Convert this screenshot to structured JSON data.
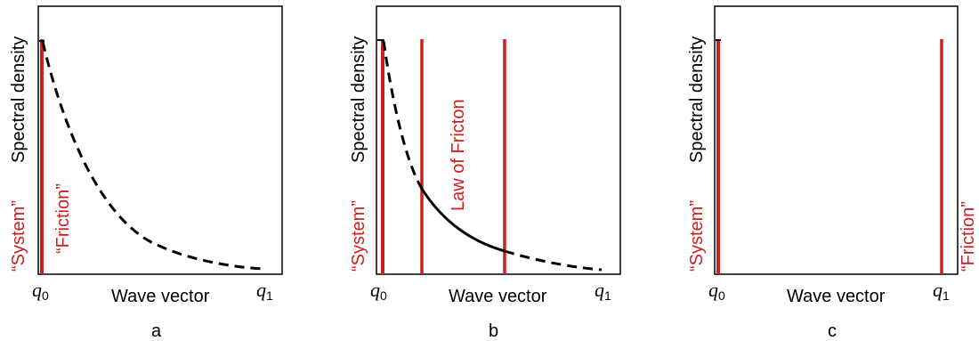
{
  "colors": {
    "accent_red": "#cc1f1f",
    "axis": "#000000"
  },
  "panels": [
    {
      "id": "a",
      "ylabel": "Spectral density",
      "xlabel": "Wave vector",
      "q0": "q",
      "q0_sub": "0",
      "q1": "q",
      "q1_sub": "1",
      "left_label": "“System”",
      "mid_label": "“Friction”",
      "letter": "a"
    },
    {
      "id": "b",
      "ylabel": "Spectral density",
      "xlabel": "Wave vector",
      "q0": "q",
      "q0_sub": "0",
      "q1": "q",
      "q1_sub": "1",
      "left_label": "“System”",
      "mid_label": "Law of Fricton",
      "letter": "b"
    },
    {
      "id": "c",
      "ylabel": "Spectral density",
      "xlabel": "Wave vector",
      "q0": "q",
      "q0_sub": "0",
      "q1": "q",
      "q1_sub": "1",
      "left_label": "“System”",
      "right_label": "“Friction”",
      "letter": "c"
    }
  ]
}
